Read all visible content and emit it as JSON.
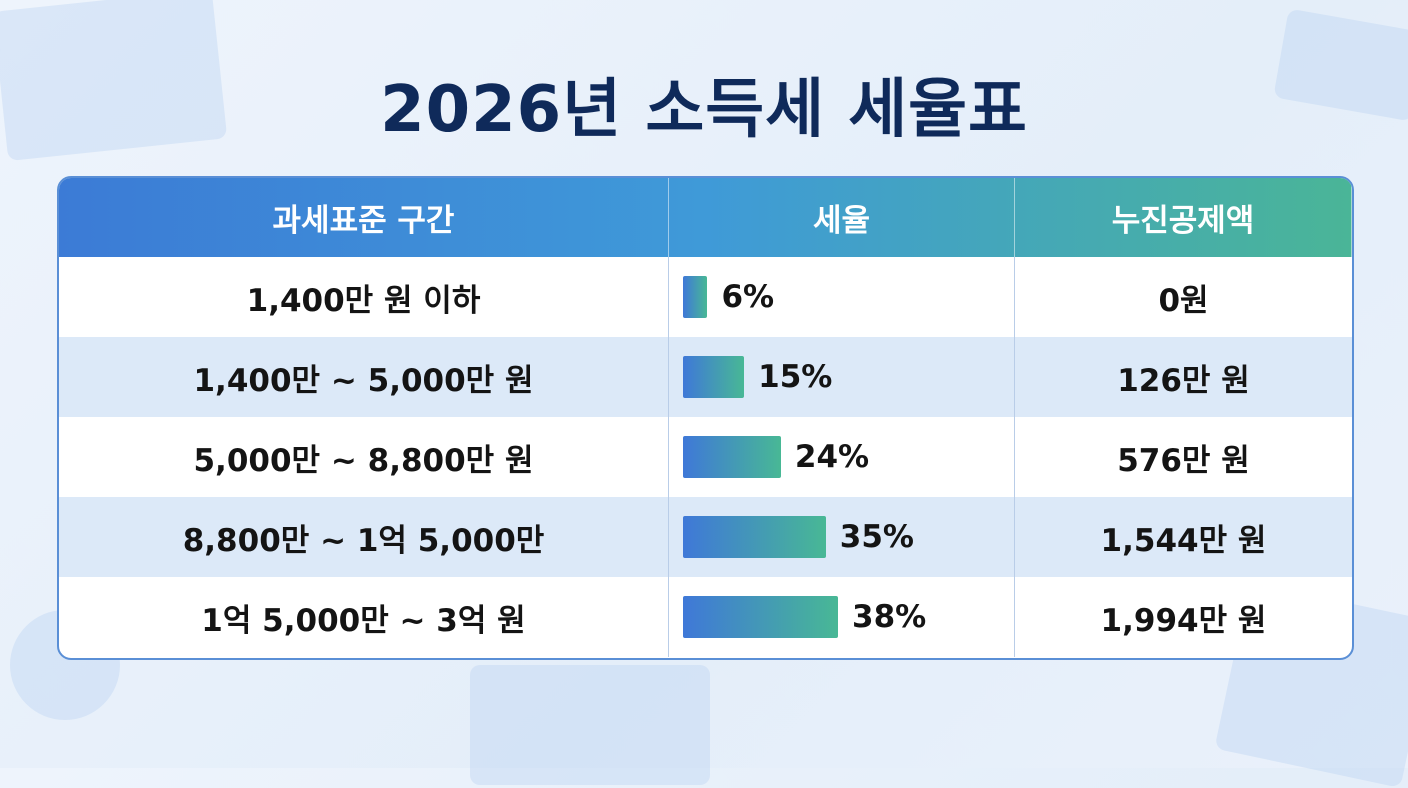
{
  "title": "2026년 소득세 세율표",
  "table": {
    "headers": [
      "과세표준 구간",
      "세율",
      "누진공제액"
    ],
    "rows": [
      {
        "bracket": "1,400만 원 이하",
        "rate": 6,
        "rate_label": "6%",
        "deduction": "0원"
      },
      {
        "bracket": "1,400만 ~ 5,000만 원",
        "rate": 15,
        "rate_label": "15%",
        "deduction": "126만 원"
      },
      {
        "bracket": "5,000만 ~ 8,800만 원",
        "rate": 24,
        "rate_label": "24%",
        "deduction": "576만 원"
      },
      {
        "bracket": "8,800만 ~ 1억 5,000만",
        "rate": 35,
        "rate_label": "35%",
        "deduction": "1,544만 원"
      },
      {
        "bracket": "1억 5,000만 ~ 3억 원",
        "rate": 38,
        "rate_label": "38%",
        "deduction": "1,994만 원"
      }
    ]
  }
}
